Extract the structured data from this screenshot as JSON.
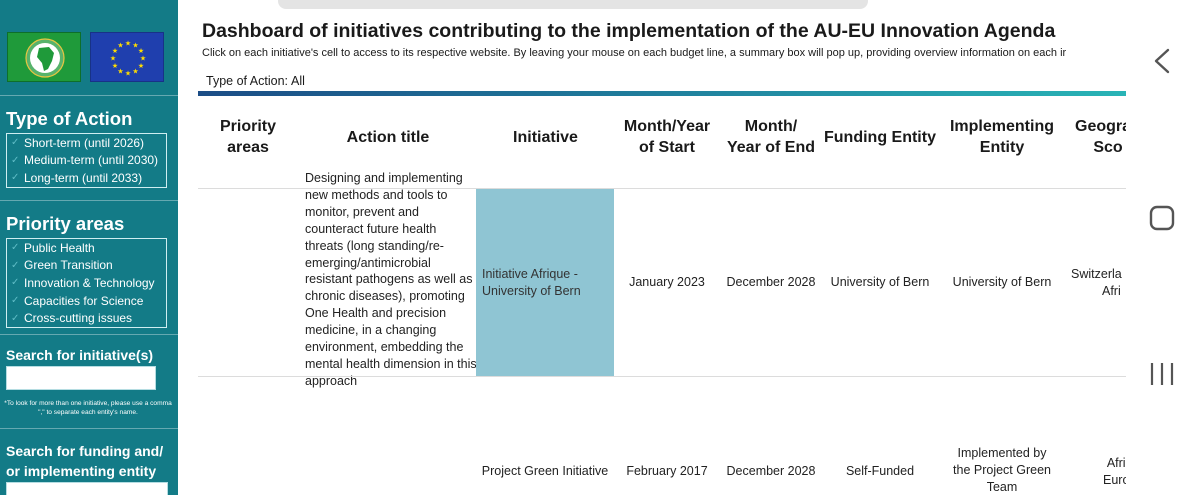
{
  "sidebar": {
    "type_of_action": {
      "heading": "Type of Action",
      "items": [
        "Short-term (until 2026)",
        "Medium-term (until 2030)",
        "Long-term (until 2033)"
      ]
    },
    "priority_areas": {
      "heading": "Priority areas",
      "items": [
        "Public Health",
        "Green Transition",
        "Innovation & Technology",
        "Capacities for Science",
        "Cross-cutting issues"
      ]
    },
    "search_initiatives": {
      "label": "Search for initiative(s)",
      "value": "",
      "note": "*To look for more than one initiative, please use a comma \",\" to separate each entity's name."
    },
    "search_entity": {
      "label_line1": "Search for funding and/",
      "label_line2": "or implementing entity",
      "value": ""
    }
  },
  "main": {
    "title": "Dashboard of initiatives contributing to the implementation of the AU-EU Innovation Agenda",
    "subtitle": "Click on each initiative's cell to access to its respective website. By leaving your mouse on each budget line, a summary box will pop up, providing overview information on each ir",
    "filter": {
      "label": "Type of Action:",
      "value": "All"
    },
    "columns": {
      "priority_areas": {
        "l1": "Priority",
        "l2": "areas"
      },
      "action_title": {
        "l1": "Action title"
      },
      "initiative": {
        "l1": "Initiative"
      },
      "start": {
        "l1": "Month/Year",
        "l2": "of Start"
      },
      "end": {
        "l1": "Month/",
        "l2": "Year of End"
      },
      "funding": {
        "l1": "Funding Entity"
      },
      "implementing": {
        "l1": "Implementing",
        "l2": "Entity"
      },
      "geo": {
        "l1": "Geogra",
        "l2": "Sco"
      }
    },
    "rows": [
      {
        "action_title": "Designing and implementing new methods and tools to monitor, prevent and counteract future health threats (long standing/re-emerging/antimicrobial resistant pathogens as well as chronic diseases), promoting One Health and precision medicine, in a changing environment, embedding the mental health dimension in this approach",
        "initiative": "Initiative Afrique - University of Bern",
        "start": "January 2023",
        "end": "December 2028",
        "funding": "University of Bern",
        "implementing": "University of Bern",
        "geo_l1": "Switzerla",
        "geo_l2": "Afri"
      },
      {
        "initiative": "Project Green Initiative",
        "start": "February 2017",
        "end": "December 2028",
        "funding": "Self-Funded",
        "implementing_l1": "Implemented by",
        "implementing_l2": "the Project Green",
        "implementing_l3": "Team",
        "geo_l1": "Afri",
        "geo_l2": "Euro"
      }
    ]
  },
  "colors": {
    "sidebar_bg": "#137b87",
    "highlight_cell": "#8fc5d3",
    "bar_start": "#1c4d86",
    "bar_end": "#29b4b6",
    "au_logo": "#1f9a3a",
    "eu_logo": "#1f3fae"
  },
  "icons": {
    "nav": [
      "back-chevron-icon",
      "home-square-icon",
      "recent-apps-icon"
    ],
    "checks": "check-icon"
  }
}
